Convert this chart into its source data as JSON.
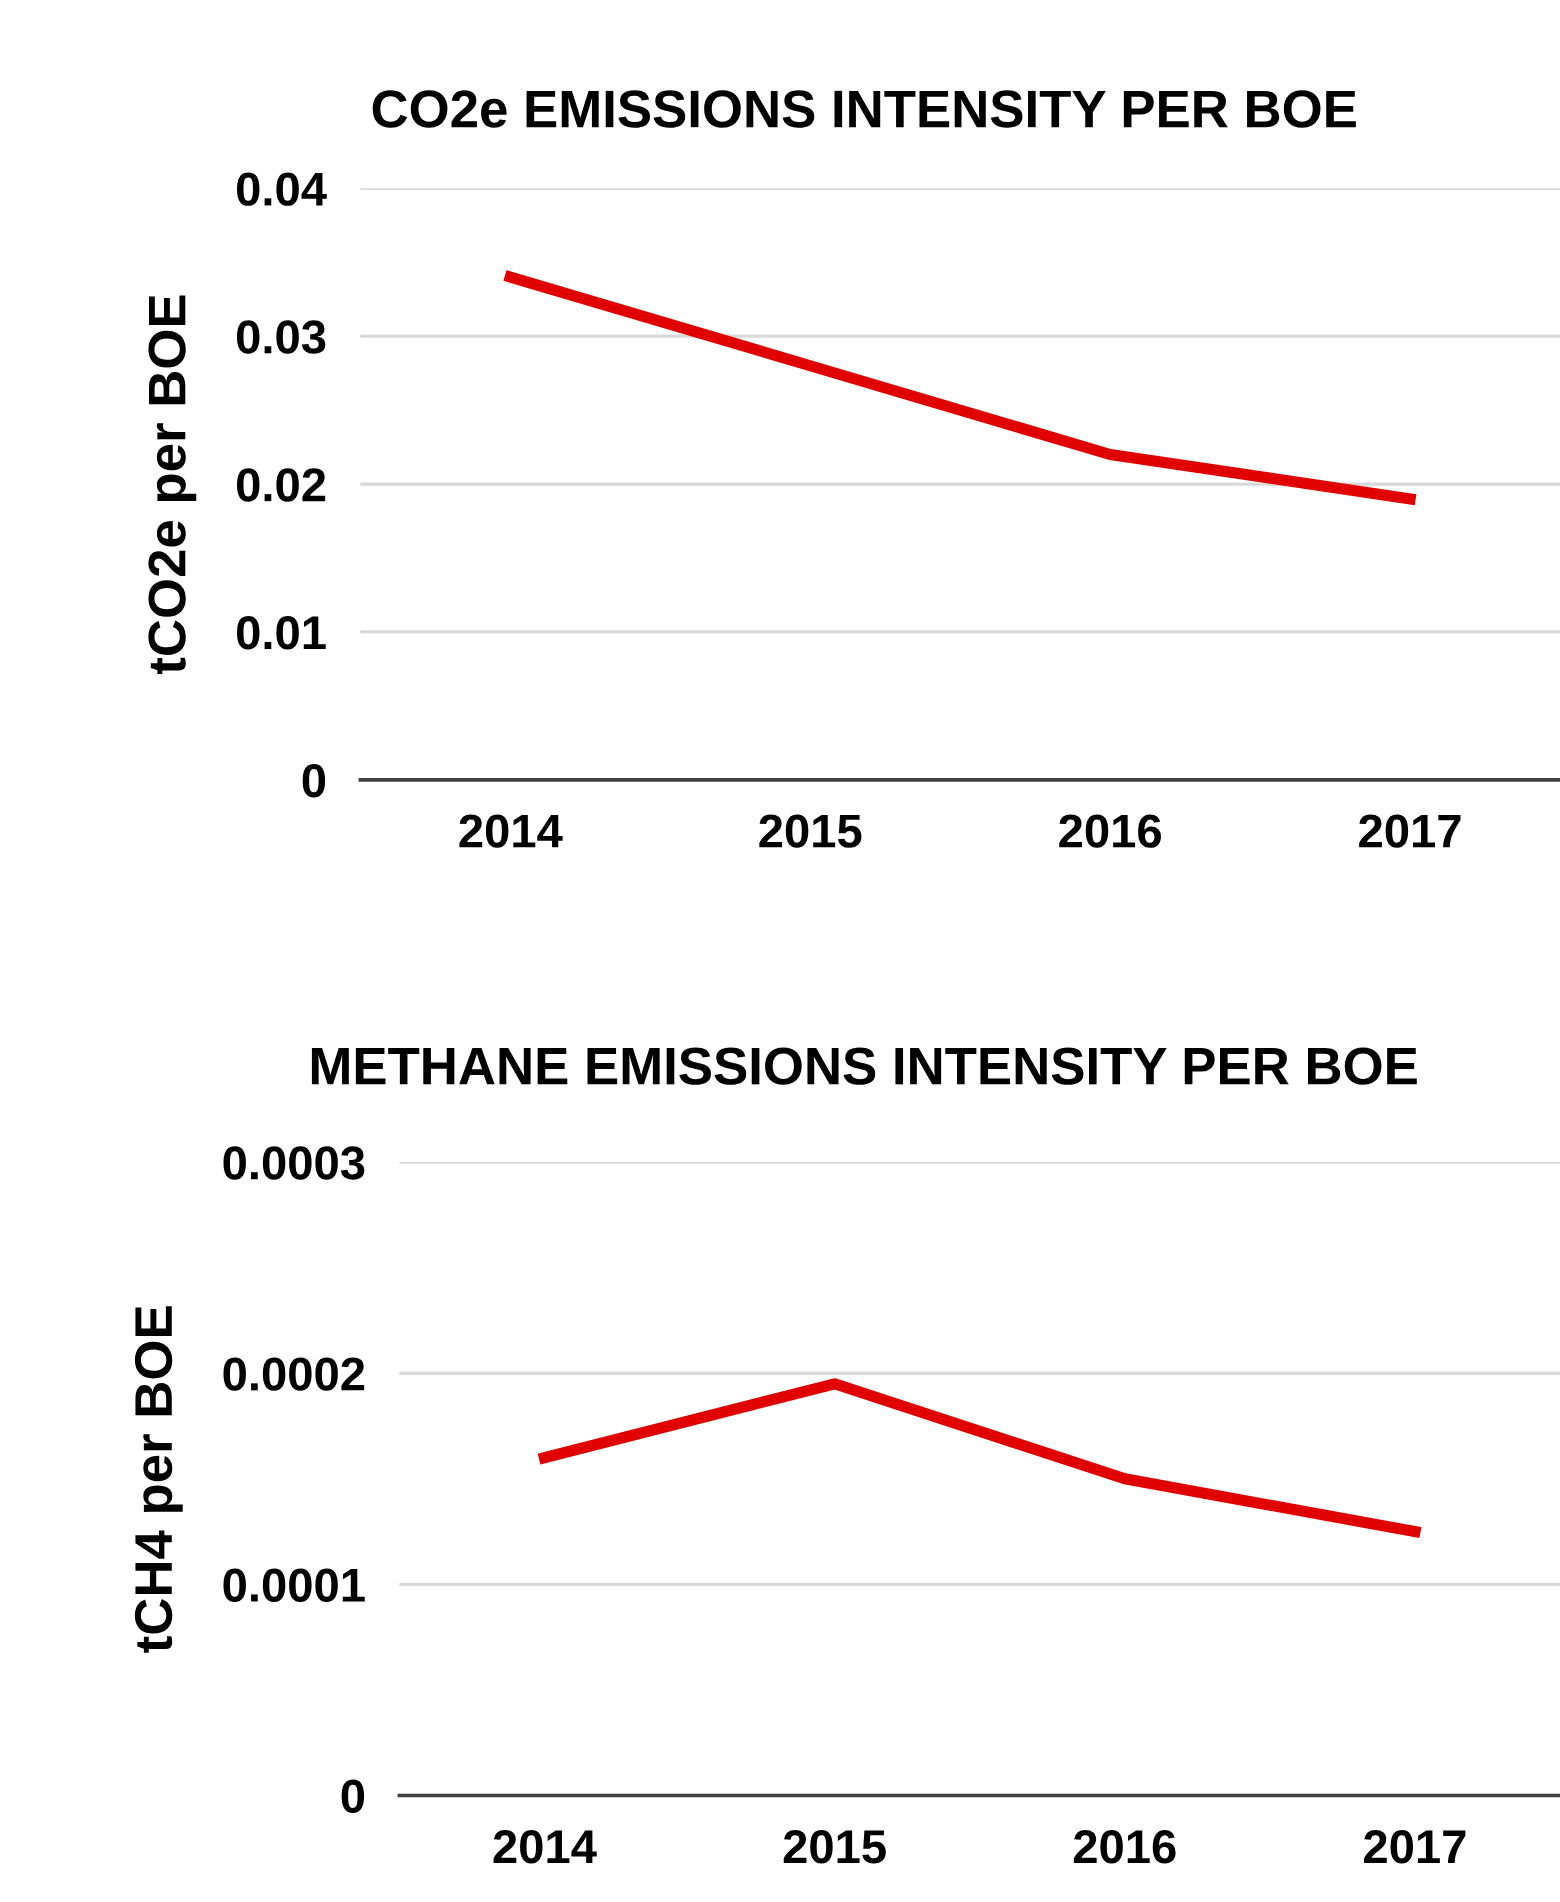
{
  "chart_data": [
    {
      "type": "line",
      "title": "CO2e EMISSIONS INTENSITY PER BOE",
      "ylabel": "tCO2e per BOE",
      "categories": [
        "2014",
        "2015",
        "2016",
        "2017"
      ],
      "series": [
        {
          "color": "#e00000",
          "values": [
            0.034,
            0.028,
            0.022,
            0.019
          ]
        }
      ],
      "ylim": [
        0,
        0.04
      ],
      "yticks": [
        0,
        0.01,
        0.02,
        0.03,
        0.04
      ],
      "grid": "y",
      "marker": "none",
      "line_style": "solid"
    },
    {
      "type": "line",
      "title": "METHANE EMISSIONS INTENSITY PER BOE",
      "ylabel": "tCH4 per BOE",
      "categories": [
        "2014",
        "2015",
        "2016",
        "2017"
      ],
      "series": [
        {
          "color": "#e00000",
          "values": [
            0.00016,
            0.000195,
            0.00015,
            0.000125
          ]
        }
      ],
      "ylim": [
        0,
        0.0003
      ],
      "yticks": [
        0,
        0.0001,
        0.0002,
        0.0003
      ],
      "grid": "y",
      "marker": "none",
      "line_style": "solid"
    }
  ]
}
